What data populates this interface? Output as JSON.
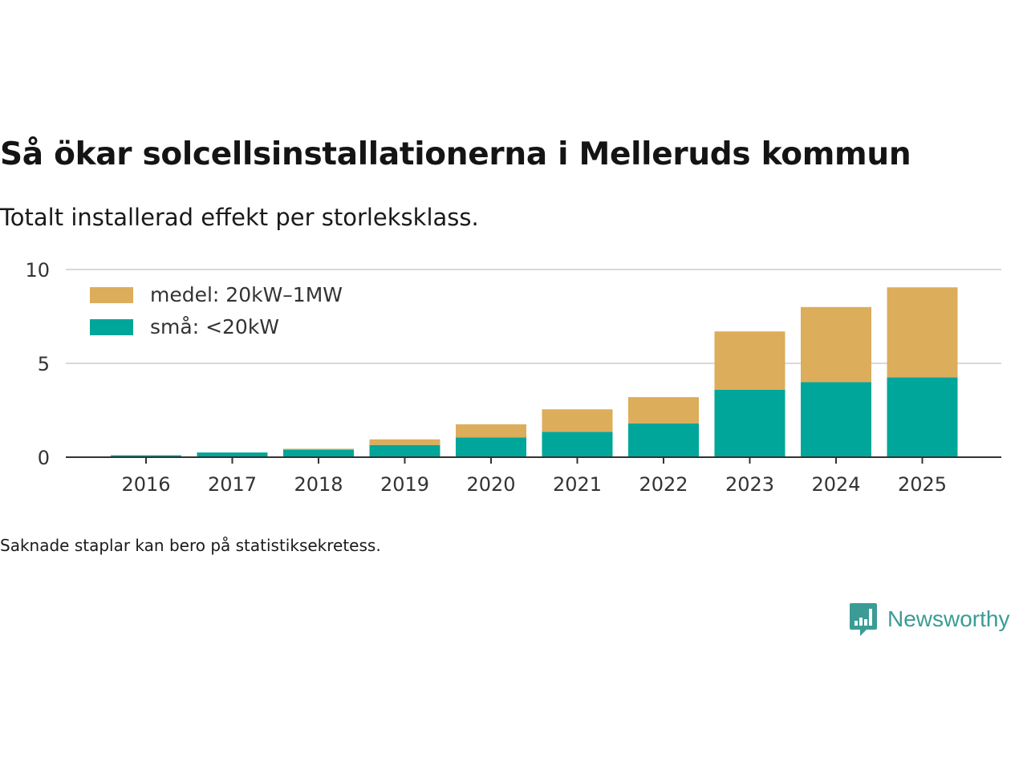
{
  "title": "Så ökar solcellsinstallationerna i Melleruds kommun",
  "subtitle": "Totalt installerad effekt per storleksklass.",
  "footnote": "Saknade staplar kan bero på statistiksekretess.",
  "brand": {
    "name": "Newsworthy",
    "logo_icon": "newsworthy-bar-chart-icon"
  },
  "colors": {
    "medel": "#dcad5b",
    "sma": "#00a699",
    "grid": "#d9d9d9",
    "axis": "#333333"
  },
  "chart_data": {
    "type": "bar",
    "stacked": true,
    "categories": [
      "2016",
      "2017",
      "2018",
      "2019",
      "2020",
      "2021",
      "2022",
      "2023",
      "2024",
      "2025"
    ],
    "series": [
      {
        "name": "små: <20kW",
        "key": "sma",
        "values": [
          0.1,
          0.25,
          0.4,
          0.65,
          1.05,
          1.35,
          1.8,
          3.6,
          4.0,
          4.25
        ]
      },
      {
        "name": "medel: 20kW–1MW",
        "key": "medel",
        "values": [
          0.0,
          0.0,
          0.05,
          0.3,
          0.7,
          1.2,
          1.4,
          3.1,
          4.0,
          4.8
        ]
      }
    ],
    "legend": [
      "medel: 20kW–1MW",
      "små: <20kW"
    ],
    "legend_position": "top-left",
    "yticks": [
      0,
      5,
      10
    ],
    "ylim": [
      0,
      10
    ],
    "xlabel": "",
    "ylabel": "",
    "grid": true
  }
}
